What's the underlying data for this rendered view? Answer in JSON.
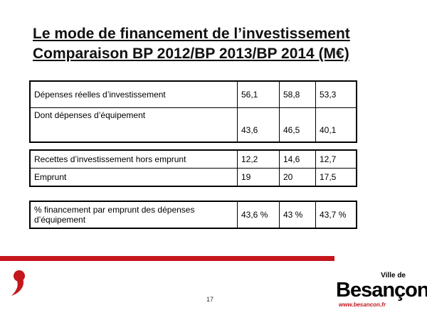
{
  "title": {
    "line1": "Le mode de financement de l’investissement",
    "line2": "Comparaison BP 2012/BP 2013/BP 2014 (M€)"
  },
  "table1": {
    "rows": [
      {
        "label": "Dépenses réelles d’investissement",
        "v2012": "56,1",
        "v2013": "58,8",
        "v2014": "53,3"
      },
      {
        "label": "Dont dépenses d’équipement",
        "v2012": "43,6",
        "v2013": "46,5",
        "v2014": "40,1"
      }
    ]
  },
  "table2": {
    "rows": [
      {
        "label": "Recettes d’investissement hors emprunt",
        "v2012": "12,2",
        "v2013": "14,6",
        "v2014": "12,7"
      },
      {
        "label": "Emprunt",
        "v2012": "19",
        "v2013": "20",
        "v2014": "17,5"
      }
    ]
  },
  "table3": {
    "rows": [
      {
        "label": "% financement par emprunt des dépenses d’équipement",
        "v2012": "43,6 %",
        "v2013": "43 %",
        "v2014": "43,7 %"
      }
    ]
  },
  "footer": {
    "page_number": "17",
    "logo_prefix": "Ville de",
    "logo_name": "Besançon",
    "logo_url": "www.besancon.fr"
  },
  "colors": {
    "accent_red": "#c4161c",
    "text": "#000000",
    "background": "#ffffff"
  },
  "icons": {
    "brand_mark": "red-comma-icon"
  }
}
